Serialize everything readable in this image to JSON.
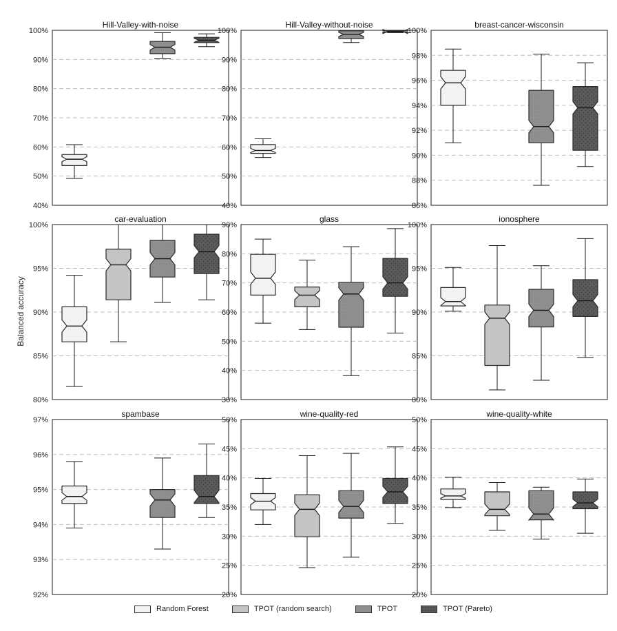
{
  "figure": {
    "ylabel": "Balanced accuracy"
  },
  "legend": [
    {
      "name": "Random Forest",
      "color": "#f2f2f2"
    },
    {
      "name": "TPOT (random search)",
      "color": "#c4c4c4"
    },
    {
      "name": "TPOT",
      "color": "#8f8f8f"
    },
    {
      "name": "TPOT (Pareto)",
      "color": "#5a5a5a"
    }
  ],
  "chart_data": [
    {
      "type": "box",
      "title": "Hill-Valley-with-noise",
      "ylim": [
        40,
        100
      ],
      "yticks": [
        40,
        50,
        60,
        70,
        80,
        90,
        100
      ],
      "tick_labels": [
        "40%",
        "50%",
        "60%",
        "70%",
        "80%",
        "90%",
        "100%"
      ],
      "series": [
        {
          "name": "Random Forest",
          "min": 49.2,
          "q1": 53.6,
          "median": 55.8,
          "q3": 57.4,
          "max": 60.8
        },
        {
          "name": "TPOT (random search)",
          "missing": true
        },
        {
          "name": "TPOT",
          "min": 90.4,
          "q1": 92.0,
          "median": 94.2,
          "q3": 96.2,
          "max": 99.2
        },
        {
          "name": "TPOT (Pareto)",
          "min": 94.4,
          "q1": 95.8,
          "median": 96.6,
          "q3": 97.6,
          "max": 98.8
        }
      ]
    },
    {
      "type": "box",
      "title": "Hill-Valley-without-noise",
      "ylim": [
        40,
        100
      ],
      "yticks": [
        40,
        50,
        60,
        70,
        80,
        90,
        100
      ],
      "tick_labels": [
        "40%",
        "50%",
        "60%",
        "70%",
        "80%",
        "90%",
        "100%"
      ],
      "series": [
        {
          "name": "Random Forest",
          "min": 56.4,
          "q1": 57.8,
          "median": 58.8,
          "q3": 60.8,
          "max": 62.8
        },
        {
          "name": "TPOT (random search)",
          "missing": true
        },
        {
          "name": "TPOT",
          "min": 95.8,
          "q1": 97.2,
          "median": 98.6,
          "q3": 99.8,
          "max": 100.0
        },
        {
          "name": "TPOT (Pareto)",
          "min": 99.2,
          "q1": 99.4,
          "median": 99.6,
          "q3": 99.8,
          "max": 100.0
        }
      ]
    },
    {
      "type": "box",
      "title": "breast-cancer-wisconsin",
      "ylim": [
        86,
        100
      ],
      "yticks": [
        86,
        88,
        90,
        92,
        94,
        96,
        98,
        100
      ],
      "tick_labels": [
        "86%",
        "88%",
        "90%",
        "92%",
        "94%",
        "96%",
        "98%",
        "100%"
      ],
      "series": [
        {
          "name": "Random Forest",
          "min": 91.0,
          "q1": 94.0,
          "median": 95.8,
          "q3": 96.8,
          "max": 98.5
        },
        {
          "name": "TPOT (random search)",
          "missing": true
        },
        {
          "name": "TPOT",
          "min": 87.6,
          "q1": 91.0,
          "median": 92.3,
          "q3": 95.2,
          "max": 98.1
        },
        {
          "name": "TPOT (Pareto)",
          "min": 89.1,
          "q1": 90.4,
          "median": 93.8,
          "q3": 95.5,
          "max": 97.4
        }
      ]
    },
    {
      "type": "box",
      "title": "car-evaluation",
      "ylim": [
        80,
        100
      ],
      "yticks": [
        80,
        85,
        90,
        95,
        100
      ],
      "tick_labels": [
        "80%",
        "85%",
        "90%",
        "95%",
        "100%"
      ],
      "series": [
        {
          "name": "Random Forest",
          "min": 81.5,
          "q1": 86.6,
          "median": 88.4,
          "q3": 90.6,
          "max": 94.2
        },
        {
          "name": "TPOT (random search)",
          "min": 86.6,
          "q1": 91.4,
          "median": 95.4,
          "q3": 97.2,
          "max": 100.0
        },
        {
          "name": "TPOT",
          "min": 91.1,
          "q1": 94.0,
          "median": 96.1,
          "q3": 98.2,
          "max": 100.0
        },
        {
          "name": "TPOT (Pareto)",
          "min": 91.4,
          "q1": 94.4,
          "median": 96.9,
          "q3": 98.9,
          "max": 100.0
        }
      ]
    },
    {
      "type": "box",
      "title": "glass",
      "ylim": [
        30,
        90
      ],
      "yticks": [
        30,
        40,
        50,
        60,
        70,
        80,
        90
      ],
      "tick_labels": [
        "30%",
        "40%",
        "50%",
        "60%",
        "70%",
        "80%",
        "90%"
      ],
      "series": [
        {
          "name": "Random Forest",
          "min": 56.2,
          "q1": 65.8,
          "median": 71.6,
          "q3": 79.8,
          "max": 85.0
        },
        {
          "name": "TPOT (random search)",
          "min": 54.0,
          "q1": 61.8,
          "median": 65.8,
          "q3": 68.6,
          "max": 77.8
        },
        {
          "name": "TPOT",
          "min": 38.2,
          "q1": 54.8,
          "median": 66.2,
          "q3": 70.2,
          "max": 82.4
        },
        {
          "name": "TPOT (Pareto)",
          "min": 52.8,
          "q1": 65.4,
          "median": 70.0,
          "q3": 78.4,
          "max": 88.6
        }
      ]
    },
    {
      "type": "box",
      "title": "ionosphere",
      "ylim": [
        80,
        100
      ],
      "yticks": [
        80,
        85,
        90,
        95,
        100
      ],
      "tick_labels": [
        "80%",
        "85%",
        "90%",
        "95%",
        "100%"
      ],
      "series": [
        {
          "name": "Random Forest",
          "min": 90.1,
          "q1": 90.7,
          "median": 91.2,
          "q3": 92.8,
          "max": 95.1
        },
        {
          "name": "TPOT (random search)",
          "min": 81.1,
          "q1": 83.9,
          "median": 89.3,
          "q3": 90.8,
          "max": 97.6
        },
        {
          "name": "TPOT",
          "min": 82.2,
          "q1": 88.3,
          "median": 90.2,
          "q3": 92.6,
          "max": 95.3
        },
        {
          "name": "TPOT (Pareto)",
          "min": 84.8,
          "q1": 89.5,
          "median": 91.3,
          "q3": 93.7,
          "max": 98.4
        }
      ]
    },
    {
      "type": "box",
      "title": "spambase",
      "ylim": [
        92,
        97
      ],
      "yticks": [
        92,
        93,
        94,
        95,
        96,
        97
      ],
      "tick_labels": [
        "92%",
        "93%",
        "94%",
        "95%",
        "96%",
        "97%"
      ],
      "series": [
        {
          "name": "Random Forest",
          "min": 93.9,
          "q1": 94.6,
          "median": 94.8,
          "q3": 95.1,
          "max": 95.8
        },
        {
          "name": "TPOT (random search)",
          "missing": true
        },
        {
          "name": "TPOT",
          "min": 93.3,
          "q1": 94.2,
          "median": 94.7,
          "q3": 95.0,
          "max": 95.9
        },
        {
          "name": "TPOT (Pareto)",
          "min": 94.2,
          "q1": 94.6,
          "median": 94.8,
          "q3": 95.4,
          "max": 96.3
        }
      ]
    },
    {
      "type": "box",
      "title": "wine-quality-red",
      "ylim": [
        20,
        50
      ],
      "yticks": [
        20,
        25,
        30,
        35,
        40,
        45,
        50
      ],
      "tick_labels": [
        "20%",
        "25%",
        "30%",
        "35%",
        "40%",
        "45%",
        "50%"
      ],
      "series": [
        {
          "name": "Random Forest",
          "min": 32.0,
          "q1": 34.5,
          "median": 36.0,
          "q3": 37.3,
          "max": 39.9
        },
        {
          "name": "TPOT (random search)",
          "min": 24.6,
          "q1": 29.9,
          "median": 34.6,
          "q3": 37.1,
          "max": 43.8
        },
        {
          "name": "TPOT",
          "min": 26.4,
          "q1": 33.1,
          "median": 35.1,
          "q3": 37.8,
          "max": 44.2
        },
        {
          "name": "TPOT (Pareto)",
          "min": 32.2,
          "q1": 35.6,
          "median": 37.6,
          "q3": 39.9,
          "max": 45.3
        }
      ]
    },
    {
      "type": "box",
      "title": "wine-quality-white",
      "ylim": [
        20,
        50
      ],
      "yticks": [
        20,
        25,
        30,
        35,
        40,
        45,
        50
      ],
      "tick_labels": [
        "20%",
        "25%",
        "30%",
        "35%",
        "40%",
        "45%",
        "50%"
      ],
      "series": [
        {
          "name": "Random Forest",
          "min": 34.9,
          "q1": 36.3,
          "median": 36.9,
          "q3": 38.1,
          "max": 40.1
        },
        {
          "name": "TPOT (random search)",
          "min": 31.0,
          "q1": 33.5,
          "median": 34.6,
          "q3": 37.6,
          "max": 39.2
        },
        {
          "name": "TPOT",
          "min": 29.5,
          "q1": 32.8,
          "median": 33.8,
          "q3": 37.8,
          "max": 38.4
        },
        {
          "name": "TPOT (Pareto)",
          "min": 30.5,
          "q1": 34.7,
          "median": 35.7,
          "q3": 37.6,
          "max": 39.8
        }
      ]
    }
  ]
}
